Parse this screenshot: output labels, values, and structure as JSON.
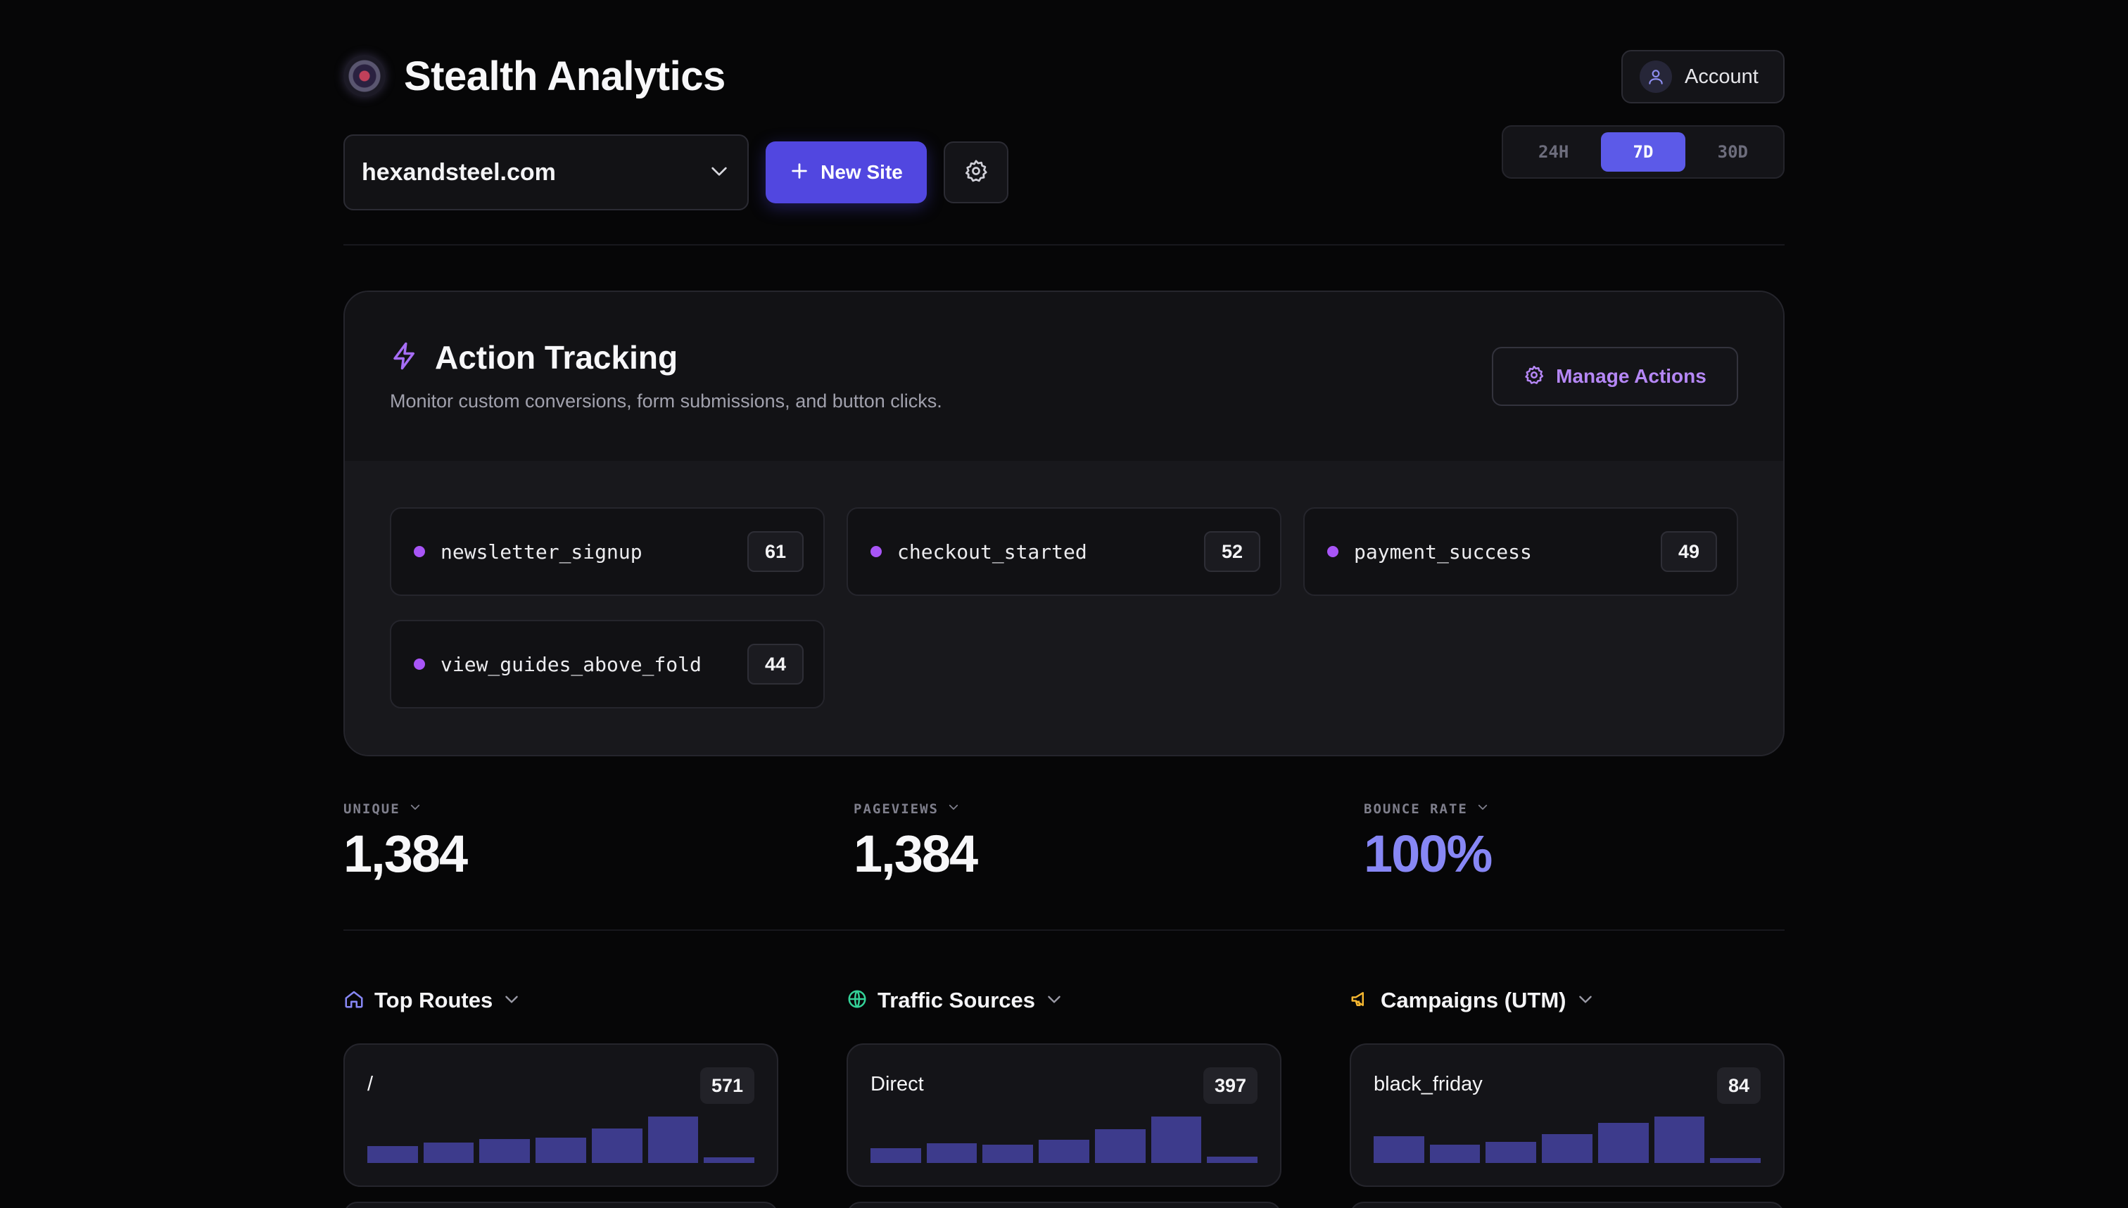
{
  "header": {
    "title": "Stealth Analytics",
    "account_label": "Account",
    "time_ranges": [
      {
        "label": "24H",
        "active": false
      },
      {
        "label": "7D",
        "active": true
      },
      {
        "label": "30D",
        "active": false
      }
    ],
    "site_select": {
      "value": "hexandsteel.com"
    },
    "new_site_label": "New Site"
  },
  "action_tracking": {
    "title": "Action Tracking",
    "subtitle": "Monitor custom conversions, form submissions, and button clicks.",
    "manage_label": "Manage Actions",
    "items": [
      {
        "name": "newsletter_signup",
        "count": "61"
      },
      {
        "name": "checkout_started",
        "count": "52"
      },
      {
        "name": "payment_success",
        "count": "49"
      },
      {
        "name": "view_guides_above_fold",
        "count": "44"
      }
    ]
  },
  "stats": [
    {
      "label": "UNIQUE",
      "value": "1,384"
    },
    {
      "label": "PAGEVIEWS",
      "value": "1,384"
    },
    {
      "label": "BOUNCE RATE",
      "value": "100%"
    }
  ],
  "panels": [
    {
      "title": "Top Routes",
      "icon": "home-icon",
      "row": {
        "label": "/",
        "count": "571",
        "bars": [
          0.36,
          0.44,
          0.52,
          0.55,
          0.75,
          1.0,
          0.12
        ]
      }
    },
    {
      "title": "Traffic Sources",
      "icon": "globe-icon",
      "row": {
        "label": "Direct",
        "count": "397",
        "bars": [
          0.32,
          0.42,
          0.4,
          0.5,
          0.72,
          1.0,
          0.14
        ]
      }
    },
    {
      "title": "Campaigns (UTM)",
      "icon": "megaphone-icon",
      "row": {
        "label": "black_friday",
        "count": "84",
        "bars": [
          0.58,
          0.4,
          0.46,
          0.62,
          0.86,
          1.0,
          0.1
        ]
      }
    }
  ],
  "colors": {
    "accent": "#5c5ae8",
    "action_accent": "#a855f7",
    "bounce_accent": "#8787f5",
    "bar": "#3d3b8c"
  }
}
